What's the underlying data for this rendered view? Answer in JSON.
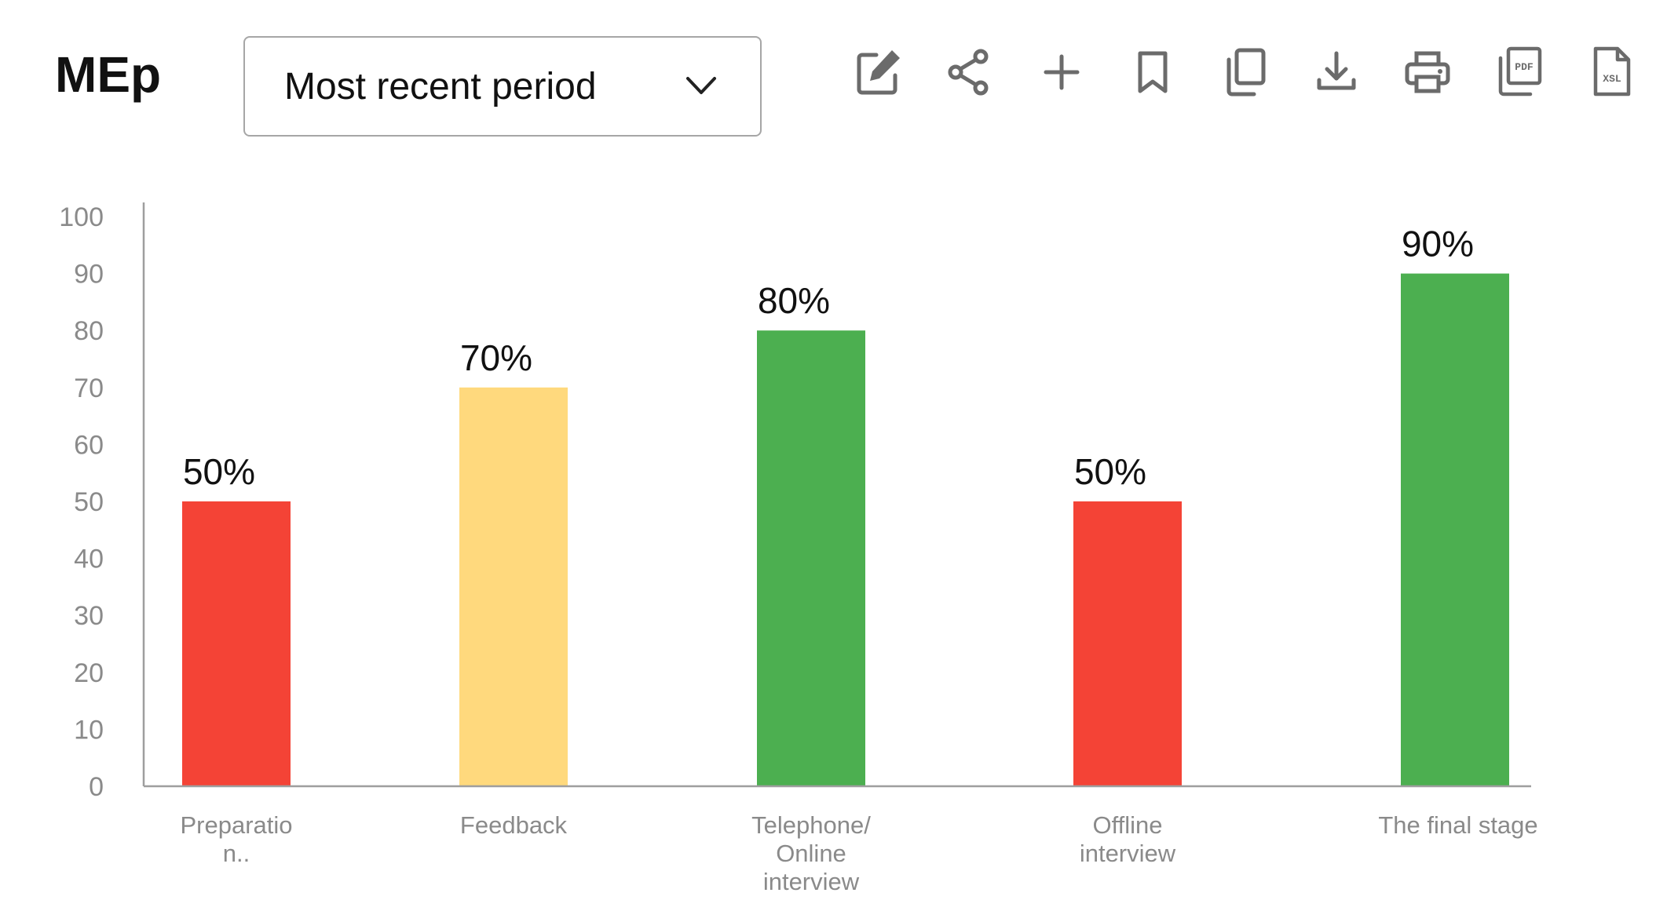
{
  "header": {
    "title": "MEp",
    "period_select": {
      "value": "Most recent period",
      "icon": "chevron-down-icon"
    }
  },
  "toolbar": {
    "items": [
      {
        "name": "edit",
        "icon": "edit-icon"
      },
      {
        "name": "share",
        "icon": "share-icon"
      },
      {
        "name": "add",
        "icon": "plus-icon"
      },
      {
        "name": "bookmark",
        "icon": "bookmark-icon"
      },
      {
        "name": "copy",
        "icon": "copy-icon"
      },
      {
        "name": "download",
        "icon": "download-icon"
      },
      {
        "name": "print",
        "icon": "print-icon"
      },
      {
        "name": "pdf",
        "icon": "pdf-icon",
        "text": "PDF"
      },
      {
        "name": "xsl",
        "icon": "xsl-icon",
        "text": "XSL"
      }
    ]
  },
  "colors": {
    "low": "#f44336",
    "mid": "#ffd97d",
    "high": "#4caf50",
    "axis": "#9e9e9e",
    "icon": "#6b6b6b"
  },
  "chart_data": {
    "type": "bar",
    "categories": [
      [
        "Preparatio",
        "n.."
      ],
      [
        "Feedback"
      ],
      [
        "Telephone/",
        "Online",
        "interview"
      ],
      [
        "Offline",
        "interview"
      ],
      [
        "The final stage"
      ]
    ],
    "values": [
      50,
      70,
      80,
      50,
      90
    ],
    "value_labels": [
      "50%",
      "70%",
      "80%",
      "50%",
      "90%"
    ],
    "bar_colors": [
      "#f44336",
      "#ffd97d",
      "#4caf50",
      "#f44336",
      "#4caf50"
    ],
    "yticks": [
      0,
      10,
      20,
      30,
      40,
      50,
      60,
      70,
      80,
      90,
      100
    ],
    "ylim": [
      0,
      100
    ],
    "grid": false,
    "legend": "none"
  }
}
